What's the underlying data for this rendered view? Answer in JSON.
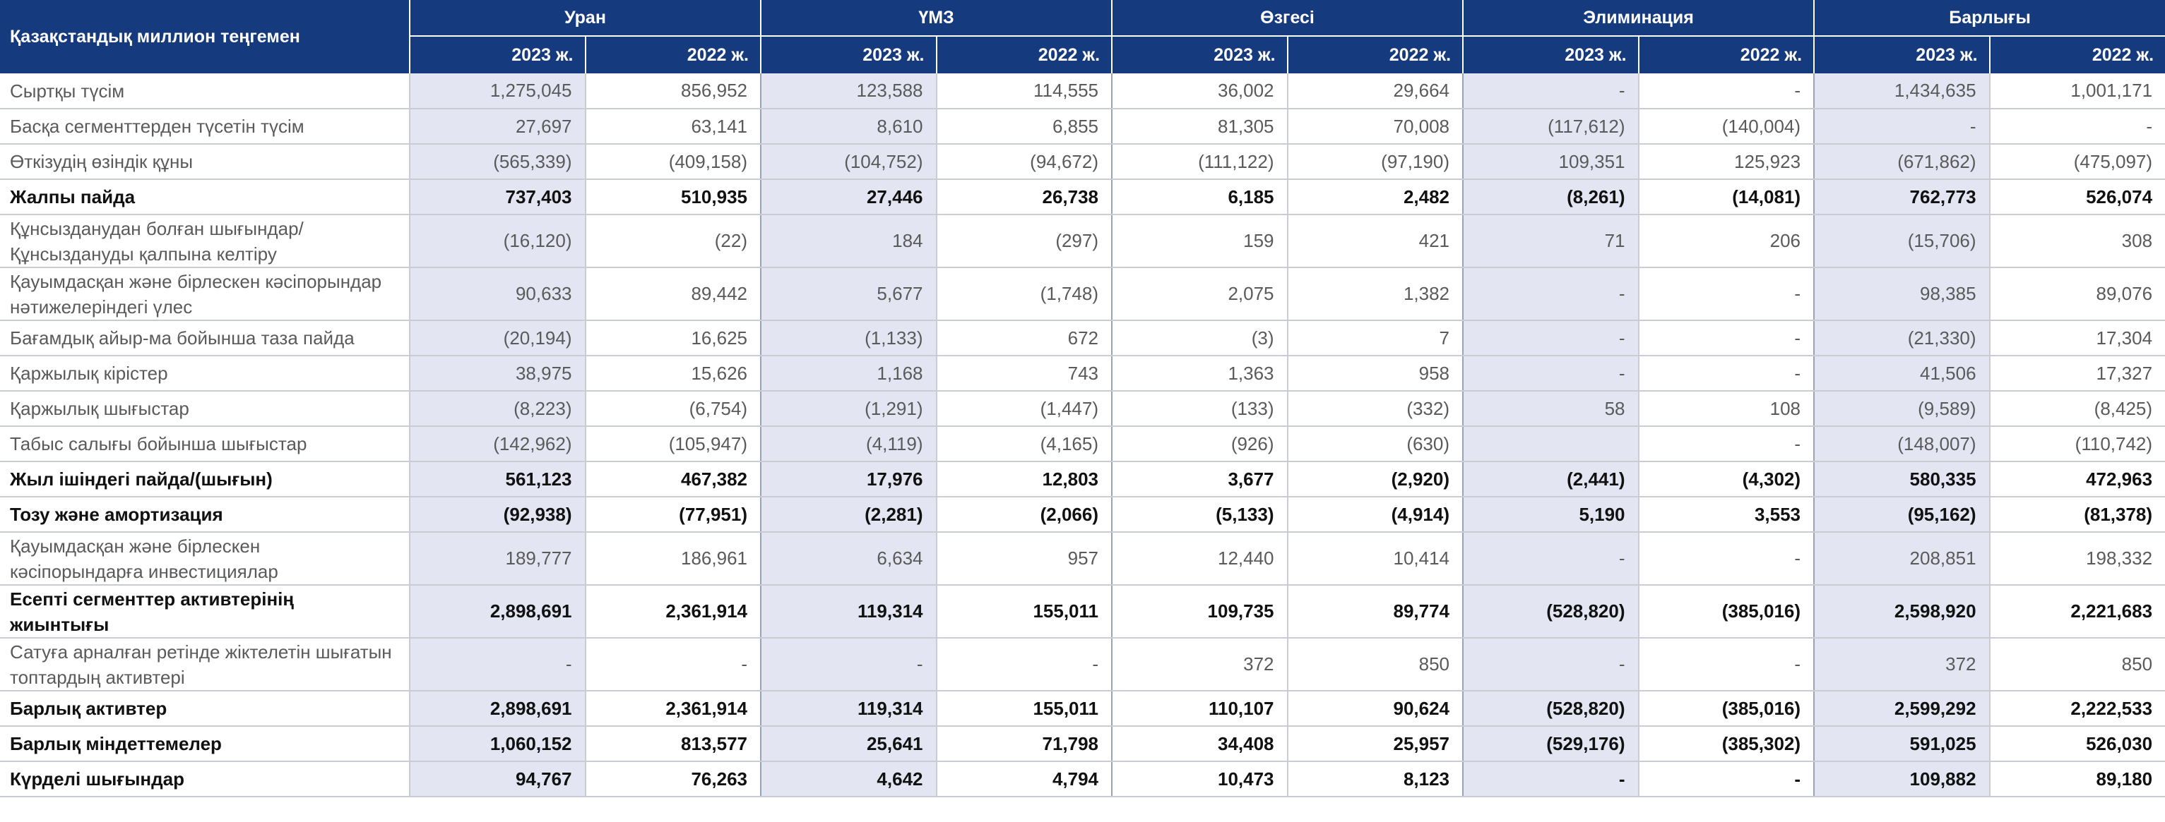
{
  "header": {
    "corner": "Қазақстандық миллион теңгемен",
    "groups": [
      "Уран",
      "ҮМЗ",
      "Өзгесі",
      "Элиминация",
      "Барлығы"
    ],
    "years": [
      "2023 ж.",
      "2022 ж.",
      "2023 ж.",
      "2022 ж.",
      "2023 ж.",
      "2022 ж.",
      "2023 ж.",
      "2022 ж.",
      "2023 ж.",
      "2022 ж."
    ]
  },
  "rows": [
    {
      "label": "Сыртқы түсім",
      "bold": false,
      "tall": false,
      "values": [
        "1,275,045",
        "856,952",
        "123,588",
        "114,555",
        "36,002",
        "29,664",
        "-",
        "-",
        "1,434,635",
        "1,001,171"
      ]
    },
    {
      "label": "Басқа сегменттерден түсетін түсім",
      "bold": false,
      "tall": false,
      "values": [
        "27,697",
        "63,141",
        "8,610",
        "6,855",
        "81,305",
        "70,008",
        "(117,612)",
        "(140,004)",
        "-",
        "-"
      ]
    },
    {
      "label": "Өткізудің өзіндік құны",
      "bold": false,
      "tall": false,
      "values": [
        "(565,339)",
        "(409,158)",
        "(104,752)",
        "(94,672)",
        "(111,122)",
        "(97,190)",
        "109,351",
        "125,923",
        "(671,862)",
        "(475,097)"
      ]
    },
    {
      "label": "Жалпы пайда",
      "bold": true,
      "tall": false,
      "values": [
        "737,403",
        "510,935",
        "27,446",
        "26,738",
        "6,185",
        "2,482",
        "(8,261)",
        "(14,081)",
        "762,773",
        "526,074"
      ]
    },
    {
      "label": "Құнсызданудан болған шығындар/ Құнсыздануды қалпына келтіру",
      "bold": false,
      "tall": true,
      "values": [
        "(16,120)",
        "(22)",
        "184",
        "(297)",
        "159",
        "421",
        "71",
        "206",
        "(15,706)",
        "308"
      ]
    },
    {
      "label": "Қауымдасқан және бірлескен кәсіпорындар нәтижелеріндегі үлес",
      "bold": false,
      "tall": true,
      "values": [
        "90,633",
        "89,442",
        "5,677",
        "(1,748)",
        "2,075",
        "1,382",
        "-",
        "-",
        "98,385",
        "89,076"
      ]
    },
    {
      "label": "Бағамдық айыр-ма бойынша таза пайда",
      "bold": false,
      "tall": false,
      "values": [
        "(20,194)",
        "16,625",
        "(1,133)",
        "672",
        "(3)",
        "7",
        "-",
        "-",
        "(21,330)",
        "17,304"
      ]
    },
    {
      "label": "Қаржылық кірістер",
      "bold": false,
      "tall": false,
      "values": [
        "38,975",
        "15,626",
        "1,168",
        "743",
        "1,363",
        "958",
        "-",
        "-",
        "41,506",
        "17,327"
      ]
    },
    {
      "label": "Қаржылық шығыстар",
      "bold": false,
      "tall": false,
      "values": [
        "(8,223)",
        "(6,754)",
        "(1,291)",
        "(1,447)",
        "(133)",
        "(332)",
        "58",
        "108",
        "(9,589)",
        "(8,425)"
      ]
    },
    {
      "label": "Табыс салығы бойынша шығыстар",
      "bold": false,
      "tall": false,
      "values": [
        "(142,962)",
        "(105,947)",
        "(4,119)",
        "(4,165)",
        "(926)",
        "(630)",
        "",
        "-",
        "(148,007)",
        "(110,742)"
      ]
    },
    {
      "label": "Жыл ішіндегі пайда/(шығын)",
      "bold": true,
      "tall": false,
      "values": [
        "561,123",
        "467,382",
        "17,976",
        "12,803",
        "3,677",
        "(2,920)",
        "(2,441)",
        "(4,302)",
        "580,335",
        "472,963"
      ]
    },
    {
      "label": "Тозу және амортизация",
      "bold": true,
      "tall": false,
      "values": [
        "(92,938)",
        "(77,951)",
        "(2,281)",
        "(2,066)",
        "(5,133)",
        "(4,914)",
        "5,190",
        "3,553",
        "(95,162)",
        "(81,378)"
      ]
    },
    {
      "label": "Қауымдасқан және  бірлескен кәсіпорындарға инвестициялар",
      "bold": false,
      "tall": true,
      "values": [
        "189,777",
        "186,961",
        "6,634",
        "957",
        "12,440",
        "10,414",
        "-",
        "-",
        "208,851",
        "198,332"
      ]
    },
    {
      "label": "Есепті сегменттер активтерінің жиынтығы",
      "bold": true,
      "tall": true,
      "values": [
        "2,898,691",
        "2,361,914",
        "119,314",
        "155,011",
        "109,735",
        "89,774",
        "(528,820)",
        "(385,016)",
        "2,598,920",
        "2,221,683"
      ]
    },
    {
      "label": "Сатуға арналған ретінде жіктелетін шығатын топтардың активтері",
      "bold": false,
      "tall": true,
      "values": [
        "-",
        "-",
        "-",
        "-",
        "372",
        "850",
        "-",
        "-",
        "372",
        "850"
      ]
    },
    {
      "label": "Барлық активтер",
      "bold": true,
      "tall": false,
      "values": [
        "2,898,691",
        "2,361,914",
        "119,314",
        "155,011",
        "110,107",
        "90,624",
        "(528,820)",
        "(385,016)",
        "2,599,292",
        "2,222,533"
      ]
    },
    {
      "label": "Барлық міндеттемелер",
      "bold": true,
      "tall": false,
      "values": [
        "1,060,152",
        "813,577",
        "25,641",
        "71,798",
        "34,408",
        "25,957",
        "(529,176)",
        "(385,302)",
        "591,025",
        "526,030"
      ]
    },
    {
      "label": "Күрделі шығындар",
      "bold": true,
      "tall": false,
      "values": [
        "94,767",
        "76,263",
        "4,642",
        "4,794",
        "10,473",
        "8,123",
        "-",
        "-",
        "109,882",
        "89,180"
      ]
    }
  ]
}
